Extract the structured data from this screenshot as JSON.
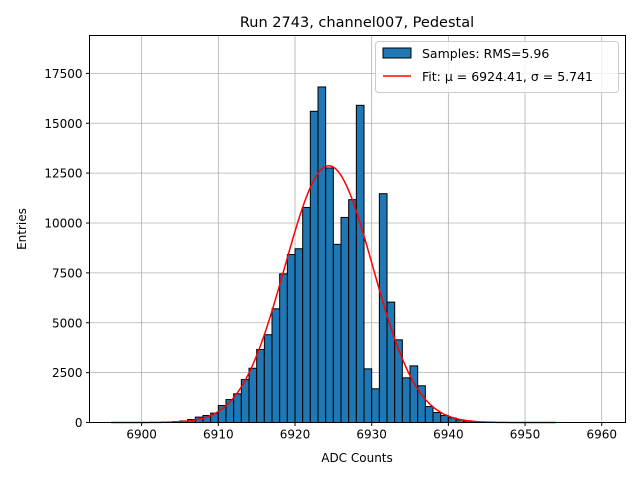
{
  "chart_data": {
    "type": "bar",
    "title": "Run 2743, channel007, Pedestal",
    "xlabel": "ADC Counts",
    "ylabel": "Entries",
    "xlim": [
      6893.2,
      6963.1
    ],
    "ylim": [
      0,
      19400
    ],
    "grid": true,
    "legend_placement": "top-right",
    "xticks": [
      6900,
      6910,
      6920,
      6930,
      6940,
      6950,
      6960
    ],
    "yticks": [
      0,
      2500,
      5000,
      7500,
      10000,
      12500,
      15000,
      17500
    ],
    "xtick_labels": [
      "6900",
      "6910",
      "6920",
      "6930",
      "6940",
      "6950",
      "6960"
    ],
    "ytick_labels": [
      "0",
      "2500",
      "5000",
      "7500",
      "10000",
      "12500",
      "15000",
      "17500"
    ],
    "histogram": {
      "name": "Samples: RMS=5.96",
      "color": "#1f77b4",
      "bin_width": 1,
      "bin_starts": [
        6903,
        6904,
        6905,
        6906,
        6907,
        6908,
        6909,
        6910,
        6911,
        6912,
        6913,
        6914,
        6915,
        6916,
        6917,
        6918,
        6919,
        6920,
        6921,
        6922,
        6923,
        6924,
        6925,
        6926,
        6927,
        6928,
        6929,
        6930,
        6931,
        6932,
        6933,
        6934,
        6935,
        6936,
        6937,
        6938,
        6939,
        6940,
        6941,
        6942,
        6943,
        6944
      ],
      "values": [
        20,
        40,
        80,
        150,
        270,
        350,
        470,
        850,
        1150,
        1440,
        2150,
        2720,
        3660,
        4400,
        5700,
        7450,
        8420,
        8710,
        10780,
        15600,
        16820,
        12760,
        8930,
        10280,
        11170,
        15900,
        2690,
        1690,
        11470,
        6035,
        4145,
        2240,
        2840,
        1840,
        800,
        500,
        350,
        230,
        130,
        80,
        40,
        20
      ]
    },
    "fit": {
      "name": "Fit: μ = 6924.41, σ = 5.741",
      "color": "#ff0000",
      "mu": 6924.41,
      "sigma": 5.741,
      "amplitude": 12870,
      "x_range": [
        6896,
        6954
      ]
    }
  }
}
